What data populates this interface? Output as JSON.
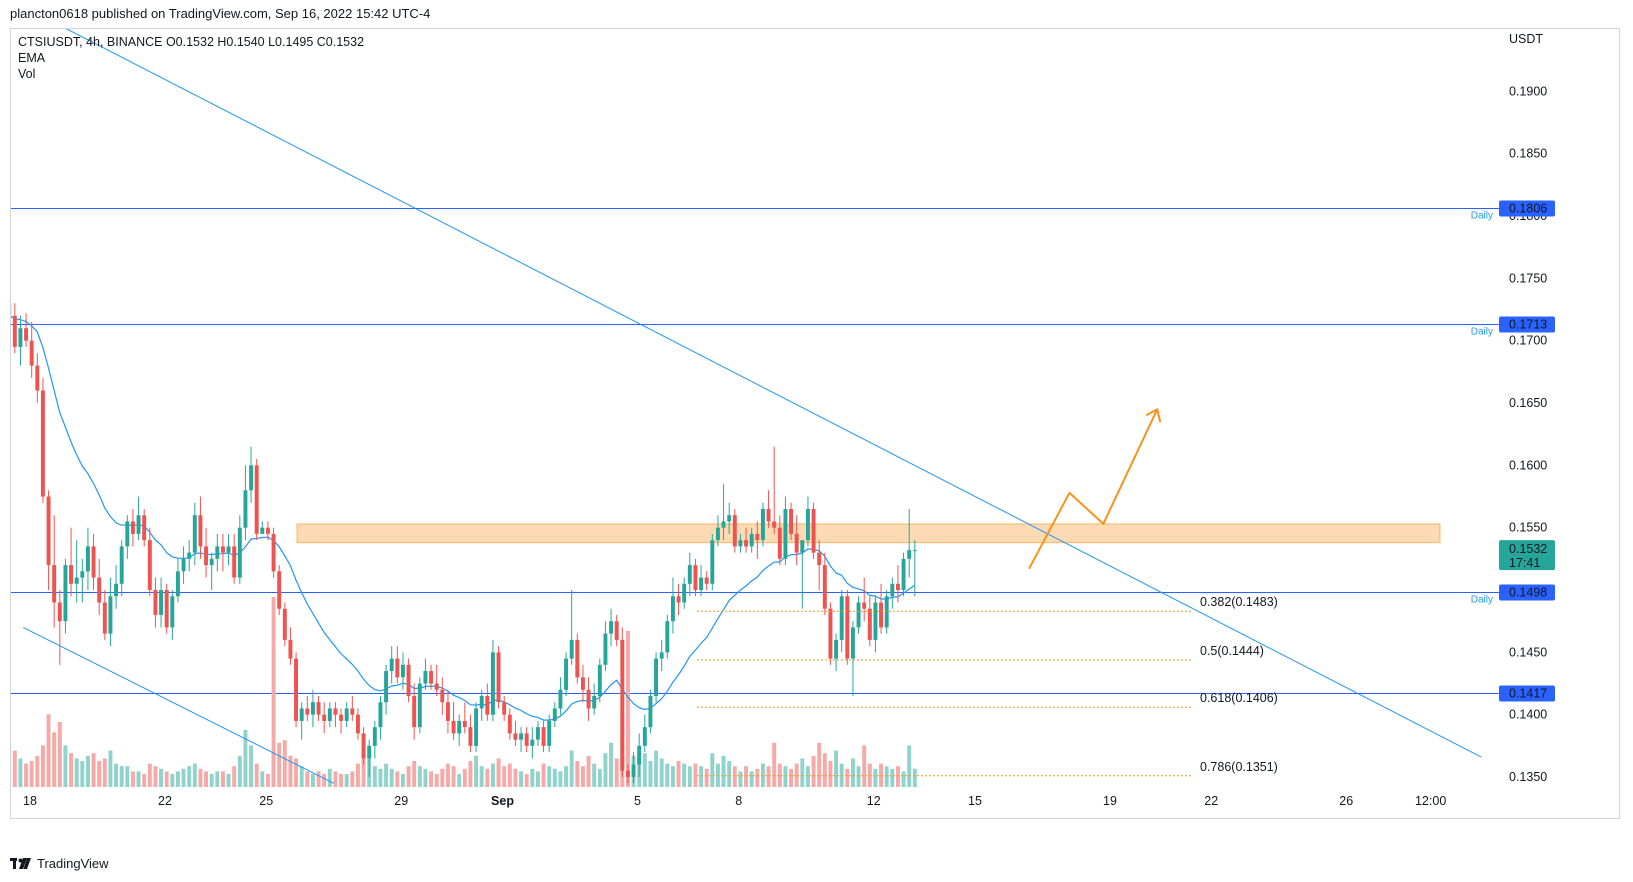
{
  "header": {
    "published": "plancton0618 published on TradingView.com, Sep 16, 2022 15:42 UTC-4"
  },
  "legend": {
    "symbol_line": "CTSIUSDT, 4h, BINANCE  O0.1532  H0.1540  L0.1495  C0.1532",
    "ema": "EMA",
    "vol": "Vol"
  },
  "brand": {
    "name": "TradingView",
    "icon": "tradingview-logo-icon"
  },
  "colors": {
    "up": "#26a69a",
    "down": "#ef5350",
    "up_vol": "#8fd3cc",
    "down_vol": "#f7a9a7",
    "ema": "#2196f3",
    "level": "#2962ff",
    "trend": "#2196f3",
    "fib": "#f7931a",
    "zone": "#f7931a",
    "price_tag": "#26a69a"
  },
  "chart_data": {
    "type": "candlestick",
    "symbol": "CTSIUSDT",
    "interval": "4h",
    "exchange": "BINANCE",
    "ohlc": {
      "open": 0.1532,
      "high": 0.154,
      "low": 0.1495,
      "close": 0.1532
    },
    "currency": "USDT",
    "y_ticks": [
      "0.1900",
      "0.1850",
      "0.1800",
      "0.1750",
      "0.1700",
      "0.1650",
      "0.1600",
      "0.1550",
      "0.1500",
      "0.1450",
      "0.1400",
      "0.1350"
    ],
    "ylim": [
      0.1342,
      0.195
    ],
    "x_ticks": [
      {
        "label": "18",
        "day": 0
      },
      {
        "label": "22",
        "day": 4
      },
      {
        "label": "25",
        "day": 7
      },
      {
        "label": "29",
        "day": 11
      },
      {
        "label": "Sep",
        "day": 14
      },
      {
        "label": "5",
        "day": 18
      },
      {
        "label": "8",
        "day": 21
      },
      {
        "label": "12",
        "day": 25
      },
      {
        "label": "15",
        "day": 28
      },
      {
        "label": "19",
        "day": 32
      },
      {
        "label": "22",
        "day": 35
      },
      {
        "label": "26",
        "day": 39
      },
      {
        "label": "12:00",
        "day": 41.5
      }
    ],
    "levels": [
      {
        "price": 0.1806,
        "label": "0.1806",
        "tag": "Daily"
      },
      {
        "price": 0.1713,
        "label": "0.1713",
        "tag": "Daily"
      },
      {
        "price": 0.1498,
        "label": "0.1498",
        "tag": "Daily"
      },
      {
        "price": 0.1417,
        "label": "0.1417",
        "tag": ""
      }
    ],
    "last_price": {
      "label": "0.1532",
      "countdown": "17:41"
    },
    "fib_levels": [
      {
        "price": 0.1483,
        "label": "0.382(0.1483)"
      },
      {
        "price": 0.1444,
        "label": "0.5(0.1444)"
      },
      {
        "price": 0.1406,
        "label": "0.618(0.1406)"
      },
      {
        "price": 0.1351,
        "label": "0.786(0.1351)"
      }
    ],
    "resistance_zone": {
      "from": 0.1538,
      "to": 0.1553
    },
    "trendlines": [
      {
        "from": {
          "day": -0.7,
          "price": 0.1975
        },
        "to": {
          "day": 43.0,
          "price": 0.1366
        }
      },
      {
        "from": {
          "day": -0.2,
          "price": 0.147
        },
        "to": {
          "day": 9.0,
          "price": 0.1345
        }
      }
    ],
    "projection": [
      {
        "day": 29.6,
        "price": 0.1517
      },
      {
        "day": 30.8,
        "price": 0.1578
      },
      {
        "day": 31.8,
        "price": 0.1553
      },
      {
        "day": 33.4,
        "price": 0.1645
      }
    ],
    "candles": [
      [
        0.173,
        0.1805,
        0.1715,
        0.172
      ],
      [
        0.172,
        0.173,
        0.169,
        0.1695
      ],
      [
        0.1695,
        0.172,
        0.168,
        0.171
      ],
      [
        0.171,
        0.1722,
        0.1695,
        0.17
      ],
      [
        0.17,
        0.1715,
        0.167,
        0.168
      ],
      [
        0.168,
        0.169,
        0.165,
        0.166
      ],
      [
        0.166,
        0.167,
        0.157,
        0.1575
      ],
      [
        0.1575,
        0.158,
        0.15,
        0.152
      ],
      [
        0.152,
        0.156,
        0.147,
        0.149
      ],
      [
        0.149,
        0.15,
        0.144,
        0.1475
      ],
      [
        0.1475,
        0.1525,
        0.1465,
        0.152
      ],
      [
        0.152,
        0.155,
        0.1495,
        0.1505
      ],
      [
        0.1505,
        0.154,
        0.149,
        0.151
      ],
      [
        0.151,
        0.1525,
        0.149,
        0.1515
      ],
      [
        0.1515,
        0.155,
        0.15,
        0.1535
      ],
      [
        0.1535,
        0.1545,
        0.15,
        0.151
      ],
      [
        0.151,
        0.1525,
        0.148,
        0.149
      ],
      [
        0.149,
        0.15,
        0.146,
        0.1465
      ],
      [
        0.1465,
        0.151,
        0.1455,
        0.1495
      ],
      [
        0.1495,
        0.152,
        0.1485,
        0.1505
      ],
      [
        0.1505,
        0.154,
        0.1495,
        0.1535
      ],
      [
        0.1535,
        0.156,
        0.1525,
        0.1555
      ],
      [
        0.1555,
        0.1565,
        0.1535,
        0.1545
      ],
      [
        0.1545,
        0.1575,
        0.154,
        0.156
      ],
      [
        0.156,
        0.1565,
        0.1535,
        0.154
      ],
      [
        0.154,
        0.155,
        0.1495,
        0.15
      ],
      [
        0.15,
        0.151,
        0.147,
        0.148
      ],
      [
        0.148,
        0.151,
        0.147,
        0.15
      ],
      [
        0.15,
        0.1505,
        0.1465,
        0.147
      ],
      [
        0.147,
        0.15,
        0.146,
        0.1495
      ],
      [
        0.1495,
        0.1525,
        0.149,
        0.1515
      ],
      [
        0.1515,
        0.1535,
        0.1505,
        0.1525
      ],
      [
        0.1525,
        0.154,
        0.1515,
        0.153
      ],
      [
        0.153,
        0.157,
        0.152,
        0.156
      ],
      [
        0.156,
        0.1575,
        0.1525,
        0.1535
      ],
      [
        0.1535,
        0.155,
        0.151,
        0.152
      ],
      [
        0.152,
        0.153,
        0.15,
        0.1525
      ],
      [
        0.1525,
        0.1545,
        0.1515,
        0.1535
      ],
      [
        0.1535,
        0.1545,
        0.1515,
        0.153
      ],
      [
        0.153,
        0.1545,
        0.152,
        0.1535
      ],
      [
        0.1535,
        0.1545,
        0.1505,
        0.151
      ],
      [
        0.151,
        0.156,
        0.1505,
        0.155
      ],
      [
        0.155,
        0.16,
        0.154,
        0.158
      ],
      [
        0.158,
        0.1615,
        0.157,
        0.16
      ],
      [
        0.16,
        0.1605,
        0.154,
        0.1545
      ],
      [
        0.1545,
        0.1555,
        0.1545,
        0.155
      ],
      [
        0.155,
        0.1555,
        0.154,
        0.1545
      ],
      [
        0.1545,
        0.155,
        0.151,
        0.1515
      ],
      [
        0.1515,
        0.152,
        0.148,
        0.1485
      ],
      [
        0.1485,
        0.149,
        0.1455,
        0.146
      ],
      [
        0.146,
        0.147,
        0.144,
        0.1445
      ],
      [
        0.1445,
        0.145,
        0.139,
        0.1395
      ],
      [
        0.1395,
        0.141,
        0.138,
        0.1405
      ],
      [
        0.1405,
        0.1415,
        0.1395,
        0.14
      ],
      [
        0.14,
        0.142,
        0.139,
        0.141
      ],
      [
        0.141,
        0.1415,
        0.1395,
        0.14
      ],
      [
        0.14,
        0.141,
        0.1385,
        0.1395
      ],
      [
        0.1395,
        0.141,
        0.139,
        0.1405
      ],
      [
        0.1405,
        0.141,
        0.139,
        0.14
      ],
      [
        0.14,
        0.1405,
        0.1385,
        0.1395
      ],
      [
        0.1395,
        0.141,
        0.139,
        0.1405
      ],
      [
        0.1405,
        0.1415,
        0.1395,
        0.14
      ],
      [
        0.14,
        0.1405,
        0.138,
        0.1385
      ],
      [
        0.1385,
        0.139,
        0.136,
        0.1365
      ],
      [
        0.1365,
        0.138,
        0.135,
        0.1375
      ],
      [
        0.1375,
        0.1395,
        0.1365,
        0.139
      ],
      [
        0.139,
        0.1415,
        0.138,
        0.141
      ],
      [
        0.141,
        0.144,
        0.14,
        0.1435
      ],
      [
        0.1435,
        0.1455,
        0.1425,
        0.1445
      ],
      [
        0.1445,
        0.1455,
        0.1425,
        0.143
      ],
      [
        0.143,
        0.145,
        0.142,
        0.144
      ],
      [
        0.144,
        0.1445,
        0.141,
        0.1415
      ],
      [
        0.1415,
        0.1425,
        0.138,
        0.139
      ],
      [
        0.139,
        0.143,
        0.1385,
        0.1425
      ],
      [
        0.1425,
        0.1445,
        0.142,
        0.1435
      ],
      [
        0.1435,
        0.144,
        0.142,
        0.1425
      ],
      [
        0.1425,
        0.144,
        0.1415,
        0.142
      ],
      [
        0.142,
        0.143,
        0.14,
        0.141
      ],
      [
        0.141,
        0.142,
        0.1385,
        0.1395
      ],
      [
        0.1395,
        0.141,
        0.138,
        0.1385
      ],
      [
        0.1385,
        0.14,
        0.1375,
        0.1395
      ],
      [
        0.1395,
        0.141,
        0.1385,
        0.139
      ],
      [
        0.139,
        0.14,
        0.137,
        0.1375
      ],
      [
        0.1375,
        0.141,
        0.137,
        0.1405
      ],
      [
        0.1405,
        0.142,
        0.1395,
        0.1415
      ],
      [
        0.1415,
        0.1425,
        0.1395,
        0.14
      ],
      [
        0.14,
        0.146,
        0.1395,
        0.145
      ],
      [
        0.145,
        0.1455,
        0.1405,
        0.141
      ],
      [
        0.141,
        0.1415,
        0.1395,
        0.14
      ],
      [
        0.14,
        0.1405,
        0.138,
        0.1385
      ],
      [
        0.1385,
        0.1395,
        0.1375,
        0.138
      ],
      [
        0.138,
        0.139,
        0.137,
        0.1385
      ],
      [
        0.1385,
        0.139,
        0.137,
        0.1375
      ],
      [
        0.1375,
        0.139,
        0.1365,
        0.138
      ],
      [
        0.138,
        0.1395,
        0.1375,
        0.139
      ],
      [
        0.139,
        0.1395,
        0.137,
        0.1375
      ],
      [
        0.1375,
        0.14,
        0.137,
        0.1395
      ],
      [
        0.1395,
        0.141,
        0.139,
        0.1405
      ],
      [
        0.1405,
        0.143,
        0.14,
        0.142
      ],
      [
        0.142,
        0.145,
        0.1415,
        0.1445
      ],
      [
        0.1445,
        0.15,
        0.144,
        0.146
      ],
      [
        0.146,
        0.1465,
        0.1425,
        0.143
      ],
      [
        0.143,
        0.144,
        0.141,
        0.142
      ],
      [
        0.142,
        0.143,
        0.1395,
        0.1405
      ],
      [
        0.1405,
        0.1425,
        0.14,
        0.1415
      ],
      [
        0.1415,
        0.1445,
        0.141,
        0.144
      ],
      [
        0.144,
        0.1475,
        0.1435,
        0.1465
      ],
      [
        0.1465,
        0.1485,
        0.1455,
        0.1475
      ],
      [
        0.1475,
        0.148,
        0.1455,
        0.146
      ],
      [
        0.146,
        0.147,
        0.135,
        0.1355
      ],
      [
        0.1355,
        0.136,
        0.1345,
        0.135
      ],
      [
        0.135,
        0.137,
        0.1345,
        0.136
      ],
      [
        0.136,
        0.1385,
        0.135,
        0.1375
      ],
      [
        0.1375,
        0.14,
        0.137,
        0.139
      ],
      [
        0.139,
        0.142,
        0.1385,
        0.1415
      ],
      [
        0.1415,
        0.145,
        0.141,
        0.1445
      ],
      [
        0.1445,
        0.146,
        0.1435,
        0.145
      ],
      [
        0.145,
        0.148,
        0.1445,
        0.1475
      ],
      [
        0.1475,
        0.151,
        0.1465,
        0.1495
      ],
      [
        0.1495,
        0.1505,
        0.148,
        0.149
      ],
      [
        0.149,
        0.151,
        0.1485,
        0.1505
      ],
      [
        0.1505,
        0.153,
        0.1495,
        0.152
      ],
      [
        0.152,
        0.1525,
        0.1495,
        0.15
      ],
      [
        0.15,
        0.152,
        0.1495,
        0.151
      ],
      [
        0.151,
        0.1515,
        0.15,
        0.1505
      ],
      [
        0.1505,
        0.1545,
        0.15,
        0.154
      ],
      [
        0.154,
        0.156,
        0.1535,
        0.155
      ],
      [
        0.155,
        0.1585,
        0.154,
        0.1555
      ],
      [
        0.1555,
        0.157,
        0.1545,
        0.156
      ],
      [
        0.156,
        0.1565,
        0.153,
        0.1535
      ],
      [
        0.1535,
        0.1545,
        0.153,
        0.154
      ],
      [
        0.154,
        0.155,
        0.153,
        0.1535
      ],
      [
        0.1535,
        0.155,
        0.153,
        0.1545
      ],
      [
        0.1545,
        0.1555,
        0.1525,
        0.154
      ],
      [
        0.154,
        0.157,
        0.1535,
        0.1565
      ],
      [
        0.1565,
        0.158,
        0.155,
        0.1555
      ],
      [
        0.1555,
        0.1615,
        0.1545,
        0.155
      ],
      [
        0.155,
        0.156,
        0.152,
        0.1525
      ],
      [
        0.1525,
        0.1575,
        0.152,
        0.1565
      ],
      [
        0.1565,
        0.157,
        0.154,
        0.1545
      ],
      [
        0.1545,
        0.156,
        0.152,
        0.153
      ],
      [
        0.153,
        0.154,
        0.1485,
        0.154
      ],
      [
        0.154,
        0.1575,
        0.1535,
        0.1565
      ],
      [
        0.1565,
        0.157,
        0.1525,
        0.153
      ],
      [
        0.153,
        0.154,
        0.15,
        0.152
      ],
      [
        0.152,
        0.153,
        0.148,
        0.1485
      ],
      [
        0.1485,
        0.149,
        0.144,
        0.1445
      ],
      [
        0.1445,
        0.1465,
        0.1435,
        0.146
      ],
      [
        0.146,
        0.15,
        0.145,
        0.1495
      ],
      [
        0.1495,
        0.15,
        0.144,
        0.1445
      ],
      [
        0.1445,
        0.1475,
        0.1415,
        0.147
      ],
      [
        0.147,
        0.1495,
        0.1465,
        0.149
      ],
      [
        0.149,
        0.151,
        0.1475,
        0.1485
      ],
      [
        0.1485,
        0.1495,
        0.1455,
        0.146
      ],
      [
        0.146,
        0.1495,
        0.145,
        0.149
      ],
      [
        0.149,
        0.1505,
        0.1465,
        0.147
      ],
      [
        0.147,
        0.15,
        0.1465,
        0.1495
      ],
      [
        0.1495,
        0.151,
        0.1485,
        0.1505
      ],
      [
        0.1505,
        0.152,
        0.149,
        0.15
      ],
      [
        0.15,
        0.153,
        0.1495,
        0.1525
      ],
      [
        0.1525,
        0.1565,
        0.151,
        0.1532
      ],
      [
        0.1532,
        0.154,
        0.1495,
        0.1532
      ]
    ],
    "volume": [
      3.4,
      2.8,
      2.2,
      1.8,
      2.0,
      2.4,
      3.2,
      5.6,
      4.2,
      5.0,
      3.2,
      2.6,
      2.2,
      2.0,
      2.4,
      2.6,
      2.0,
      2.2,
      2.8,
      1.8,
      1.6,
      1.6,
      1.2,
      1.2,
      1.0,
      1.8,
      1.6,
      1.4,
      1.2,
      1.0,
      1.2,
      1.4,
      1.6,
      1.8,
      1.4,
      1.2,
      1.0,
      1.2,
      1.2,
      1.0,
      1.6,
      2.4,
      4.4,
      3.2,
      1.8,
      1.2,
      1.0,
      2.6,
      3.4,
      3.6,
      2.4,
      2.2,
      1.6,
      1.2,
      1.0,
      1.2,
      1.0,
      1.4,
      1.2,
      1.0,
      1.0,
      1.2,
      1.8,
      2.6,
      2.2,
      1.6,
      1.4,
      1.8,
      1.4,
      1.2,
      1.0,
      1.6,
      2.0,
      1.6,
      1.4,
      1.2,
      1.0,
      1.4,
      1.8,
      1.6,
      1.0,
      1.4,
      2.0,
      2.4,
      1.6,
      1.4,
      1.8,
      2.2,
      1.6,
      1.8,
      1.4,
      1.2,
      1.0,
      1.4,
      1.2,
      1.8,
      1.6,
      1.4,
      1.2,
      1.6,
      2.8,
      2.0,
      1.6,
      2.4,
      1.8,
      1.4,
      2.6,
      3.4,
      2.2,
      5.6,
      4.6,
      2.4,
      2.2,
      2.6,
      2.0,
      2.8,
      2.2,
      1.8,
      1.6,
      2.0,
      1.8,
      1.6,
      1.8,
      1.6,
      1.4,
      2.6,
      1.8,
      2.4,
      2.0,
      1.6,
      1.2,
      1.6,
      1.2,
      1.4,
      1.8,
      1.6,
      3.4,
      1.8,
      1.6,
      1.4,
      1.8,
      2.2,
      1.6,
      2.4,
      3.4,
      2.6,
      2.0,
      2.8,
      1.8,
      1.4,
      2.2,
      1.6,
      3.2,
      1.8,
      1.4,
      1.8,
      1.6,
      1.4,
      1.6,
      1.2,
      3.2,
      1.4
    ],
    "volume_tall": [
      {
        "index": 47,
        "height_ratio": 0.95
      },
      {
        "index": 110,
        "height_ratio": 0.78
      }
    ]
  }
}
